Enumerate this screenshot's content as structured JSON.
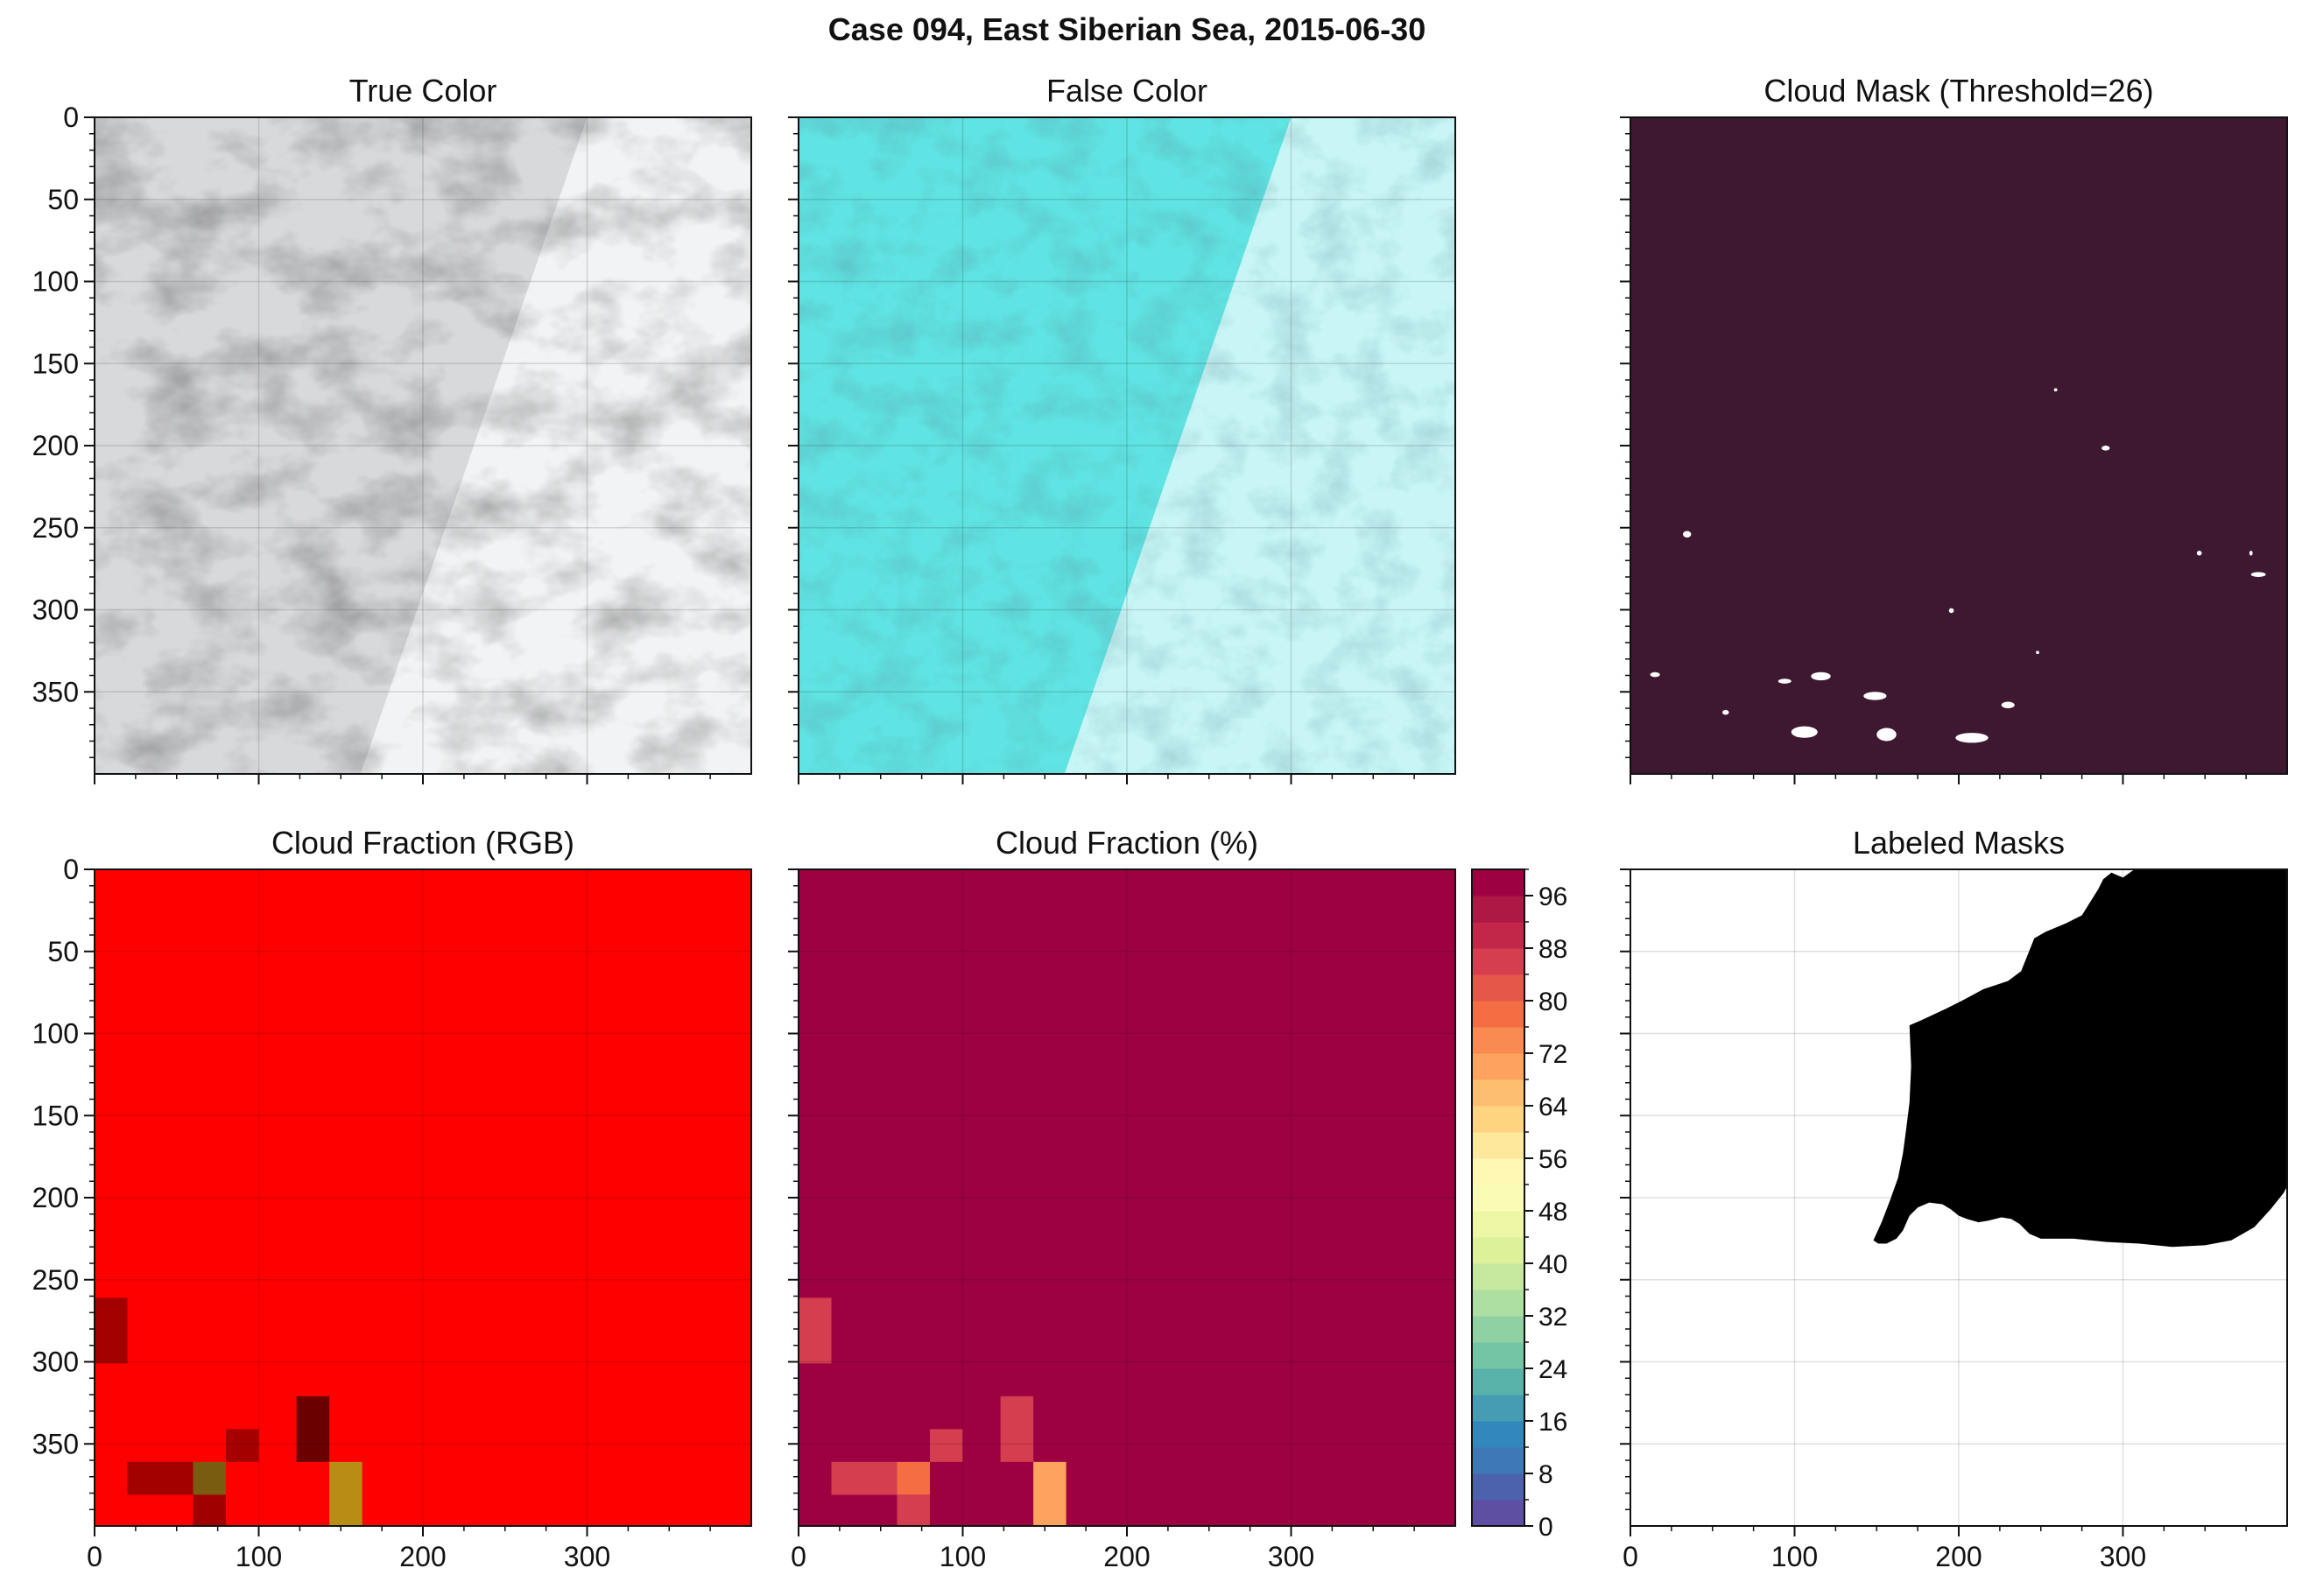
{
  "figure": {
    "title": "Case 094, East Siberian Sea, 2015-06-30"
  },
  "chart_data": [
    {
      "type": "heatmap",
      "id": "true-color",
      "title": "True Color",
      "xlim": [
        0,
        400
      ],
      "ylim": [
        400,
        0
      ],
      "xticks": [
        0,
        100,
        200,
        300
      ],
      "yticks": [
        0,
        50,
        100,
        150,
        200,
        250,
        300,
        350
      ],
      "show_xticklabels": false,
      "show_yticklabels": true,
      "grid": true,
      "swath_edge": {
        "top_x": 300,
        "bottom_x": 162
      },
      "colors": {
        "left": "#d8d9db",
        "right": "#f2f3f4"
      }
    },
    {
      "type": "heatmap",
      "id": "false-color",
      "title": "False Color",
      "xlim": [
        0,
        400
      ],
      "ylim": [
        400,
        0
      ],
      "xticks": [
        0,
        100,
        200,
        300
      ],
      "yticks": [
        0,
        50,
        100,
        150,
        200,
        250,
        300,
        350
      ],
      "show_xticklabels": false,
      "show_yticklabels": false,
      "grid": true,
      "swath_edge": {
        "top_x": 300,
        "bottom_x": 162
      },
      "colors": {
        "left": "#5fe3e3",
        "right": "#c8f6f6"
      }
    },
    {
      "type": "heatmap",
      "id": "cloud-mask",
      "title": "Cloud Mask (Threshold=26)",
      "xlim": [
        0,
        400
      ],
      "ylim": [
        400,
        0
      ],
      "xticks": [
        0,
        100,
        200,
        300
      ],
      "yticks": [
        0,
        50,
        100,
        150,
        200,
        250,
        300,
        350
      ],
      "show_xticklabels": false,
      "show_yticklabels": false,
      "grid": false,
      "colors": {
        "background": "#3d1830",
        "clear": "#ffffff"
      },
      "clear_patches": [
        {
          "x": 12,
          "y": 338,
          "w": 6,
          "h": 3
        },
        {
          "x": 110,
          "y": 338,
          "w": 12,
          "h": 5
        },
        {
          "x": 90,
          "y": 342,
          "w": 8,
          "h": 3
        },
        {
          "x": 98,
          "y": 371,
          "w": 16,
          "h": 7
        },
        {
          "x": 142,
          "y": 350,
          "w": 14,
          "h": 5
        },
        {
          "x": 150,
          "y": 372,
          "w": 12,
          "h": 8
        },
        {
          "x": 198,
          "y": 375,
          "w": 20,
          "h": 6
        },
        {
          "x": 226,
          "y": 356,
          "w": 8,
          "h": 4
        },
        {
          "x": 56,
          "y": 361,
          "w": 4,
          "h": 3
        },
        {
          "x": 32,
          "y": 252,
          "w": 5,
          "h": 4
        },
        {
          "x": 287,
          "y": 200,
          "w": 5,
          "h": 3
        },
        {
          "x": 345,
          "y": 264,
          "w": 3,
          "h": 3
        },
        {
          "x": 377,
          "y": 264,
          "w": 2,
          "h": 3
        },
        {
          "x": 378,
          "y": 277,
          "w": 9,
          "h": 3
        },
        {
          "x": 194,
          "y": 299,
          "w": 3,
          "h": 3
        },
        {
          "x": 247,
          "y": 325,
          "w": 2,
          "h": 2
        },
        {
          "x": 258,
          "y": 165,
          "w": 2,
          "h": 2
        }
      ]
    },
    {
      "type": "heatmap",
      "id": "cloud-fraction-rgb",
      "title": "Cloud Fraction (RGB)",
      "xlim": [
        0,
        400
      ],
      "ylim": [
        400,
        0
      ],
      "xticks": [
        0,
        100,
        200,
        300
      ],
      "yticks": [
        0,
        50,
        100,
        150,
        200,
        250,
        300,
        350
      ],
      "show_xticklabels": true,
      "show_yticklabels": true,
      "grid": true,
      "background": "#ff0000",
      "cells": [
        {
          "x": 0,
          "y": 261,
          "w": 20,
          "h": 40,
          "color": "#a30000"
        },
        {
          "x": 20,
          "y": 361,
          "w": 40,
          "h": 20,
          "color": "#a30000"
        },
        {
          "x": 60,
          "y": 361,
          "w": 20,
          "h": 20,
          "color": "#7a5c10"
        },
        {
          "x": 60,
          "y": 381,
          "w": 20,
          "h": 19,
          "color": "#a00000"
        },
        {
          "x": 80,
          "y": 341,
          "w": 20,
          "h": 20,
          "color": "#a50000"
        },
        {
          "x": 123,
          "y": 321,
          "w": 20,
          "h": 40,
          "color": "#6a0000"
        },
        {
          "x": 143,
          "y": 361,
          "w": 20,
          "h": 39,
          "color": "#b88d13"
        }
      ]
    },
    {
      "type": "heatmap",
      "id": "cloud-fraction-pct",
      "title": "Cloud Fraction (%)",
      "xlim": [
        0,
        400
      ],
      "ylim": [
        400,
        0
      ],
      "xticks": [
        0,
        100,
        200,
        300
      ],
      "yticks": [
        0,
        50,
        100,
        150,
        200,
        250,
        300,
        350
      ],
      "show_xticklabels": true,
      "show_yticklabels": false,
      "grid": true,
      "background_value": 100,
      "cells": [
        {
          "x": 0,
          "y": 261,
          "w": 20,
          "h": 40,
          "value": 87
        },
        {
          "x": 20,
          "y": 361,
          "w": 40,
          "h": 20,
          "value": 87
        },
        {
          "x": 60,
          "y": 361,
          "w": 20,
          "h": 20,
          "value": 77
        },
        {
          "x": 60,
          "y": 381,
          "w": 20,
          "h": 19,
          "value": 87
        },
        {
          "x": 80,
          "y": 341,
          "w": 20,
          "h": 20,
          "value": 85
        },
        {
          "x": 123,
          "y": 321,
          "w": 20,
          "h": 40,
          "value": 85
        },
        {
          "x": 143,
          "y": 361,
          "w": 20,
          "h": 39,
          "value": 69
        }
      ],
      "colorbar": {
        "levels": [
          0,
          4,
          8,
          12,
          16,
          20,
          24,
          28,
          32,
          36,
          40,
          44,
          48,
          52,
          56,
          60,
          64,
          68,
          72,
          76,
          80,
          84,
          88,
          92,
          96,
          100
        ],
        "ticks": [
          0,
          8,
          16,
          24,
          32,
          40,
          48,
          56,
          64,
          72,
          80,
          88,
          96
        ],
        "colors": [
          "#5e4fa2",
          "#4d62ad",
          "#3e78b6",
          "#3288bd",
          "#469db3",
          "#58b2aa",
          "#74c5a5",
          "#90d1a4",
          "#addea2",
          "#c6e89d",
          "#ddf19b",
          "#eef7a6",
          "#f9fcb5",
          "#fff8b4",
          "#fee89b",
          "#fed481",
          "#fdbf6f",
          "#fda35e",
          "#f88a52",
          "#f46d43",
          "#e55749",
          "#d53e4f",
          "#c22649",
          "#ad1845",
          "#9e0142"
        ]
      }
    },
    {
      "type": "heatmap",
      "id": "labeled-masks",
      "title": "Labeled Masks",
      "xlim": [
        0,
        400
      ],
      "ylim": [
        400,
        0
      ],
      "xticks": [
        0,
        100,
        200,
        300
      ],
      "yticks": [
        0,
        50,
        100,
        150,
        200,
        250,
        300,
        350
      ],
      "show_xticklabels": true,
      "show_yticklabels": false,
      "grid": true,
      "colors": {
        "background": "#ffffff",
        "region": "#000000"
      },
      "region_outline": [
        [
          293,
          2
        ],
        [
          300,
          5
        ],
        [
          307,
          0
        ],
        [
          400,
          0
        ],
        [
          400,
          193
        ],
        [
          398,
          197
        ],
        [
          390,
          207
        ],
        [
          380,
          218
        ],
        [
          366,
          226
        ],
        [
          350,
          229
        ],
        [
          330,
          230
        ],
        [
          310,
          228
        ],
        [
          290,
          227
        ],
        [
          270,
          225
        ],
        [
          250,
          225
        ],
        [
          243,
          222
        ],
        [
          237,
          216
        ],
        [
          232,
          213
        ],
        [
          226,
          212
        ],
        [
          218,
          214
        ],
        [
          212,
          215
        ],
        [
          205,
          213
        ],
        [
          200,
          211
        ],
        [
          195,
          207
        ],
        [
          190,
          204
        ],
        [
          182,
          203
        ],
        [
          175,
          206
        ],
        [
          170,
          211
        ],
        [
          166,
          220
        ],
        [
          162,
          225
        ],
        [
          156,
          228
        ],
        [
          151,
          228
        ],
        [
          148,
          226
        ],
        [
          153,
          215
        ],
        [
          158,
          202
        ],
        [
          163,
          188
        ],
        [
          166,
          173
        ],
        [
          168,
          158
        ],
        [
          170,
          142
        ],
        [
          171,
          120
        ],
        [
          170,
          95
        ],
        [
          177,
          92
        ],
        [
          192,
          85
        ],
        [
          202,
          80
        ],
        [
          215,
          73
        ],
        [
          230,
          68
        ],
        [
          238,
          62
        ],
        [
          242,
          52
        ],
        [
          246,
          42
        ],
        [
          253,
          38
        ],
        [
          265,
          33
        ],
        [
          275,
          28
        ],
        [
          280,
          20
        ],
        [
          285,
          12
        ],
        [
          288,
          6
        ]
      ]
    }
  ]
}
